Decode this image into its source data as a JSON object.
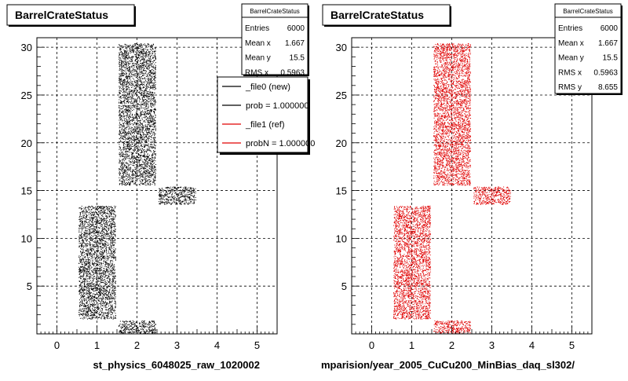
{
  "colors": {
    "background": "#ffffff",
    "frame": "#000000",
    "grid": "#000000",
    "new_series": "#000000",
    "ref_series": "#e00000"
  },
  "chart_data": [
    {
      "type": "scatter",
      "title": "BarrelCrateStatus",
      "xlabel": "st_physics_6048025_raw_1020002",
      "xlim": [
        -0.5,
        5.5
      ],
      "ylim": [
        0,
        31
      ],
      "xticks": [
        "0",
        "1",
        "2",
        "3",
        "4",
        "5"
      ],
      "yticks": [
        "5",
        "10",
        "15",
        "20",
        "25",
        "30"
      ],
      "grid": true,
      "stats": {
        "title": "BarrelCrateStatus",
        "rows": [
          {
            "label": "Entries",
            "value": "6000"
          },
          {
            "label": "Mean x",
            "value": "1.667"
          },
          {
            "label": "Mean y",
            "value": "15.5"
          },
          {
            "label": "RMS x",
            "value": "0.5963"
          }
        ]
      },
      "legend": {
        "placement": "top-right",
        "entries": [
          {
            "label": "_file0 (new)",
            "color": "#000000"
          },
          {
            "label": "prob = 1.000000",
            "color": "#000000"
          },
          {
            "label": "_file1 (ref)",
            "color": "#e00000"
          },
          {
            "label": "probN = 1.000000",
            "color": "#e00000"
          }
        ]
      },
      "series": [
        {
          "color": "#000000",
          "regions": [
            {
              "x": [
                0.5,
                1.5
              ],
              "y": [
                1.5,
                13.5
              ]
            },
            {
              "x": [
                1.5,
                2.5
              ],
              "y": [
                15.5,
                30.5
              ]
            },
            {
              "x": [
                2.5,
                3.5
              ],
              "y": [
                13.5,
                15.5
              ]
            },
            {
              "x": [
                1.5,
                2.5
              ],
              "y": [
                0.0,
                1.5
              ]
            }
          ]
        }
      ]
    },
    {
      "type": "scatter",
      "title": "BarrelCrateStatus",
      "xlabel": "mparision/year_2005_CuCu200_MinBias_daq_sl302/",
      "xlim": [
        -0.5,
        5.5
      ],
      "ylim": [
        0,
        31
      ],
      "xticks": [
        "0",
        "1",
        "2",
        "3",
        "4",
        "5"
      ],
      "yticks": [
        "5",
        "10",
        "15",
        "20",
        "25",
        "30"
      ],
      "grid": true,
      "stats": {
        "title": "BarrelCrateStatus",
        "rows": [
          {
            "label": "Entries",
            "value": "6000"
          },
          {
            "label": "Mean x",
            "value": "1.667"
          },
          {
            "label": "Mean y",
            "value": "15.5"
          },
          {
            "label": "RMS x",
            "value": "0.5963"
          },
          {
            "label": "RMS y",
            "value": "8.655"
          }
        ]
      },
      "series": [
        {
          "color": "#e00000",
          "regions": [
            {
              "x": [
                0.5,
                1.5
              ],
              "y": [
                1.5,
                13.5
              ]
            },
            {
              "x": [
                1.5,
                2.5
              ],
              "y": [
                15.5,
                30.5
              ]
            },
            {
              "x": [
                2.5,
                3.5
              ],
              "y": [
                13.5,
                15.5
              ]
            },
            {
              "x": [
                1.5,
                2.5
              ],
              "y": [
                0.0,
                1.5
              ]
            }
          ]
        }
      ]
    }
  ]
}
